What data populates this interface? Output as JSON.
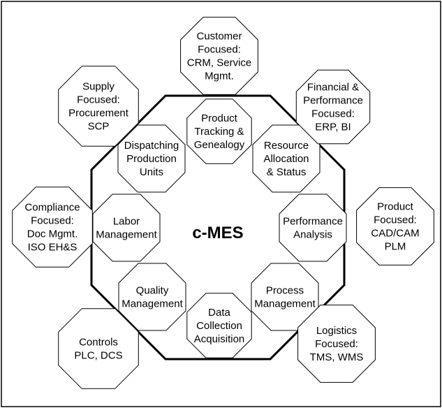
{
  "title": "c-MES",
  "functions": [
    {
      "id": "product-tracking",
      "lines": [
        "Product",
        "Tracking &",
        "Genealogy"
      ]
    },
    {
      "id": "resource-allocation",
      "lines": [
        "Resource",
        "Allocation",
        "& Status"
      ]
    },
    {
      "id": "performance-analysis",
      "lines": [
        "Performance",
        "Analysis"
      ]
    },
    {
      "id": "process-management",
      "lines": [
        "Process",
        "Management"
      ]
    },
    {
      "id": "data-collection",
      "lines": [
        "Data",
        "Collection",
        "Acquisition"
      ]
    },
    {
      "id": "quality-management",
      "lines": [
        "Quality",
        "Management"
      ]
    },
    {
      "id": "labor-management",
      "lines": [
        "Labor",
        "Management"
      ]
    },
    {
      "id": "dispatching",
      "lines": [
        "Dispatching",
        "Production",
        "Units"
      ]
    }
  ],
  "external": [
    {
      "id": "customer-focused",
      "lines": [
        "Customer",
        "Focused:",
        "CRM, Service",
        "Mgmt."
      ]
    },
    {
      "id": "financial-focused",
      "lines": [
        "Financial &",
        "Performance",
        "Focused:",
        "ERP, BI"
      ]
    },
    {
      "id": "product-focused",
      "lines": [
        "Product",
        "Focused:",
        "CAD/CAM",
        "PLM"
      ]
    },
    {
      "id": "logistics-focused",
      "lines": [
        "Logistics",
        "Focused:",
        "TMS, WMS"
      ]
    },
    {
      "id": "controls",
      "lines": [
        "Controls",
        "PLC, DCS"
      ]
    },
    {
      "id": "compliance-focused",
      "lines": [
        "Compliance",
        "Focused:",
        "Doc Mgmt.",
        "ISO EH&S"
      ]
    },
    {
      "id": "supply-focused",
      "lines": [
        "Supply",
        "Focused:",
        "Procurement",
        "SCP"
      ]
    }
  ]
}
